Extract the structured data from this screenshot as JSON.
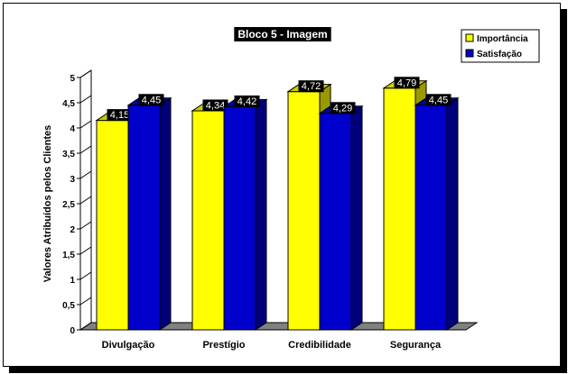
{
  "chart_data": {
    "type": "bar",
    "title": "Bloco 5 - Imagem",
    "ylabel": "Valores Atribuídos pelos Clientes",
    "xlabel": "",
    "categories": [
      "Divulgação",
      "Prestígio",
      "Credibilidade",
      "Segurança"
    ],
    "series": [
      {
        "name": "Importância",
        "color": "#ffff00",
        "values": [
          4.15,
          4.34,
          4.72,
          4.79
        ],
        "labels": [
          "4,15",
          "4,34",
          "4,72",
          "4,79"
        ]
      },
      {
        "name": "Satisfação",
        "color": "#0000cc",
        "values": [
          4.45,
          4.42,
          4.29,
          4.45
        ],
        "labels": [
          "4,45",
          "4,42",
          "4,29",
          "4,45"
        ]
      }
    ],
    "ylim": [
      0,
      5
    ],
    "yticks": [
      "0",
      "0,5",
      "1",
      "1,5",
      "2",
      "2,5",
      "3",
      "3,5",
      "4",
      "4,5",
      "5"
    ],
    "legend_position": "top-right",
    "grid": false,
    "style": "3d"
  }
}
